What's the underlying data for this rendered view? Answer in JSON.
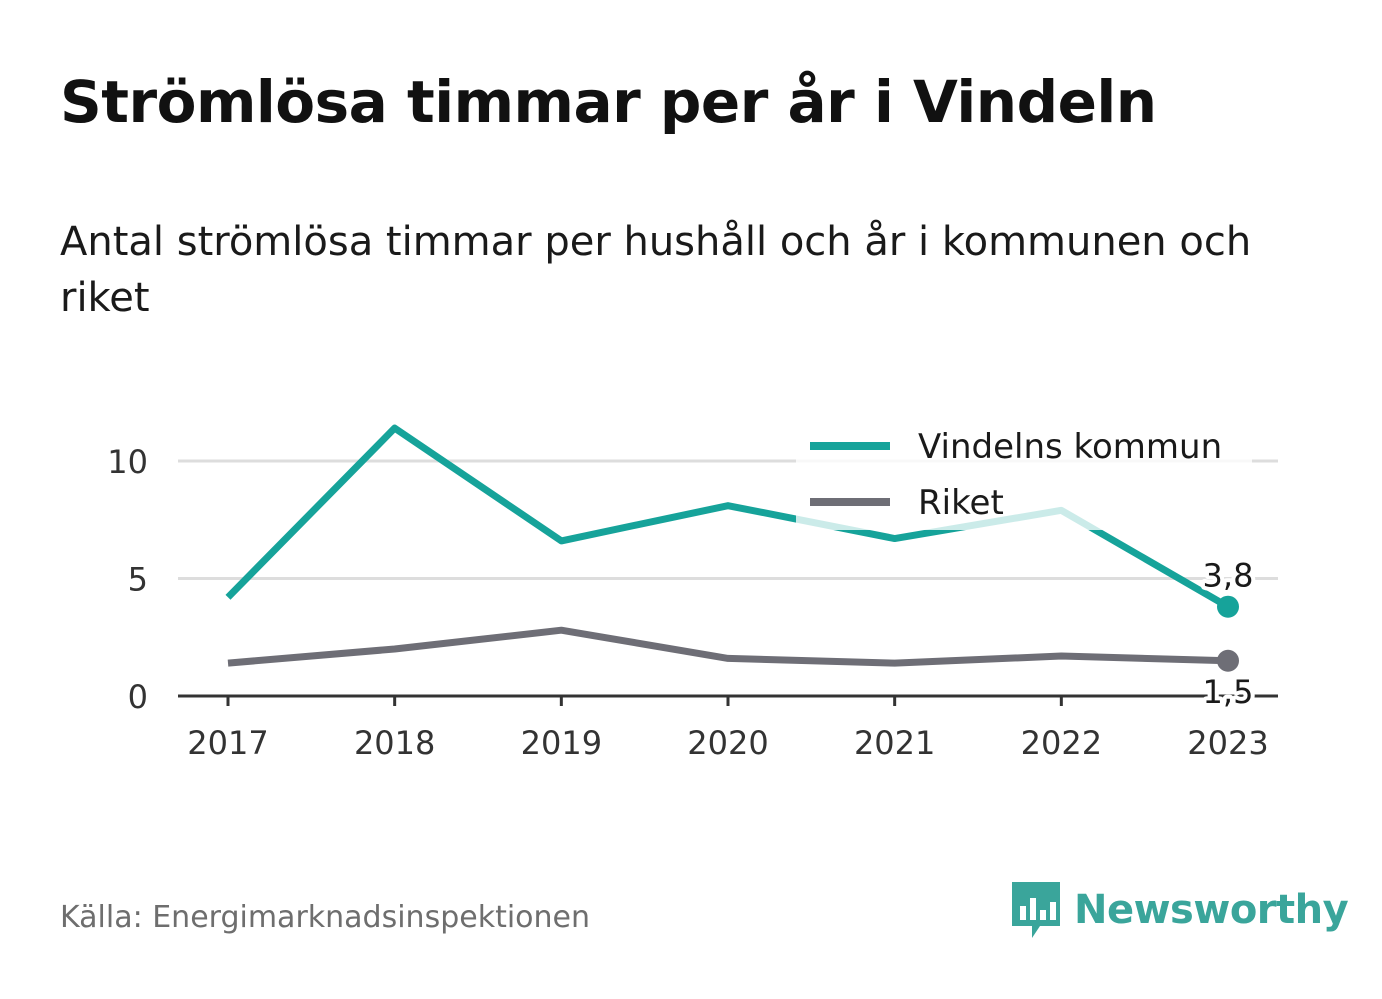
{
  "title": "Strömlösa timmar per år i Vindeln",
  "subtitle": "Antal strömlösa timmar per hushåll och år i kommunen och riket",
  "source": "Källa: Energimarknadsinspektionen",
  "brand": "Newsworthy",
  "colors": {
    "vindeln": "#16a39a",
    "riket": "#6e6e76",
    "grid": "#dddddd",
    "axis": "#333333",
    "brand": "#3aa59b"
  },
  "chart_data": {
    "type": "line",
    "x": [
      "2017",
      "2018",
      "2019",
      "2020",
      "2021",
      "2022",
      "2023"
    ],
    "ylim": [
      0,
      12
    ],
    "yticks": [
      "0",
      "5",
      "10"
    ],
    "legend_position": "top-right",
    "grid": true,
    "series": [
      {
        "name": "Vindelns kommun",
        "values": [
          4.2,
          11.4,
          6.6,
          8.1,
          6.7,
          7.9,
          3.8
        ],
        "end_label": "3,8"
      },
      {
        "name": "Riket",
        "values": [
          1.4,
          2.0,
          2.8,
          1.6,
          1.4,
          1.7,
          1.5
        ],
        "end_label": "1,5"
      }
    ]
  }
}
